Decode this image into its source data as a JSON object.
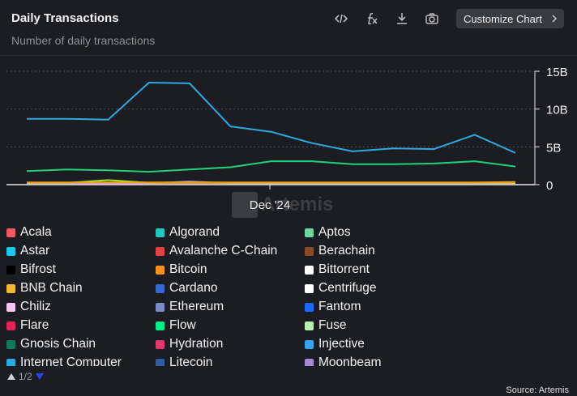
{
  "header": {
    "title": "Daily Transactions",
    "subtitle": "Number of daily transactions",
    "customize_label": "Customize Chart"
  },
  "toolbar": {
    "icons": [
      "code-icon",
      "formula-icon",
      "download-icon",
      "camera-icon"
    ]
  },
  "watermark": "Artemis",
  "chart_data": {
    "type": "line",
    "x_tick_labels": [
      "Dec '24"
    ],
    "y_ticks": [
      "0",
      "5B",
      "10B",
      "15B"
    ],
    "ylim": [
      0,
      15
    ],
    "y_unit": "B",
    "grid": true,
    "series": [
      {
        "color": "#2ea8e0",
        "values": [
          8.7,
          8.7,
          8.6,
          13.5,
          13.4,
          7.7,
          7.0,
          5.5,
          4.4,
          4.8,
          4.7,
          6.6,
          4.2
        ]
      },
      {
        "color": "#22d27a",
        "values": [
          1.8,
          2.0,
          1.9,
          1.7,
          2.0,
          2.3,
          3.1,
          3.1,
          2.7,
          2.7,
          2.8,
          3.1,
          2.4
        ]
      },
      {
        "color": "#f59e0b",
        "values": [
          0.3,
          0.3,
          0.3,
          0.3,
          0.3,
          0.3,
          0.3,
          0.3,
          0.3,
          0.3,
          0.3,
          0.3,
          0.35
        ]
      },
      {
        "color": "#a3e635",
        "values": [
          0.25,
          0.25,
          0.6,
          0.25,
          0.25,
          0.25,
          0.25,
          0.25,
          0.25,
          0.25,
          0.25,
          0.25,
          0.25
        ]
      },
      {
        "color": "#c4a1ff",
        "values": [
          0.2,
          0.2,
          0.2,
          0.2,
          0.4,
          0.2,
          0.2,
          0.2,
          0.2,
          0.2,
          0.2,
          0.2,
          0.2
        ]
      },
      {
        "color": "#e11d48",
        "values": [
          0.15,
          0.15,
          0.15,
          0.15,
          0.15,
          0.15,
          0.15,
          0.15,
          0.15,
          0.15,
          0.15,
          0.15,
          0.15
        ]
      },
      {
        "color": "#f97316",
        "values": [
          0.1,
          0.1,
          0.1,
          0.1,
          0.1,
          0.1,
          0.1,
          0.1,
          0.1,
          0.1,
          0.1,
          0.1,
          0.1
        ]
      }
    ],
    "legend": [
      {
        "name": "Acala",
        "color": "#f05a5a"
      },
      {
        "name": "Algorand",
        "color": "#1ec7c0"
      },
      {
        "name": "Aptos",
        "color": "#6cd4a0"
      },
      {
        "name": "Astar",
        "color": "#18c9f0"
      },
      {
        "name": "Avalanche C-Chain",
        "color": "#e84142"
      },
      {
        "name": "Berachain",
        "color": "#8b4a2b"
      },
      {
        "name": "Bifrost",
        "color": "#000000"
      },
      {
        "name": "Bitcoin",
        "color": "#f7931a"
      },
      {
        "name": "Bittorrent",
        "color": "#ffffff"
      },
      {
        "name": "BNB Chain",
        "color": "#f3ba2f"
      },
      {
        "name": "Cardano",
        "color": "#3468d1"
      },
      {
        "name": "Centrifuge",
        "color": "#ffffff"
      },
      {
        "name": "Chiliz",
        "color": "#f5c6f0"
      },
      {
        "name": "Ethereum",
        "color": "#7b8ac9"
      },
      {
        "name": "Fantom",
        "color": "#1969ff"
      },
      {
        "name": "Flare",
        "color": "#e62058"
      },
      {
        "name": "Flow",
        "color": "#00ef8b"
      },
      {
        "name": "Fuse",
        "color": "#b4f0b4"
      },
      {
        "name": "Gnosis Chain",
        "color": "#0e7a5a"
      },
      {
        "name": "Hydration",
        "color": "#e8356d"
      },
      {
        "name": "Injective",
        "color": "#34a3f0"
      },
      {
        "name": "Internet Computer",
        "color": "#29abe2"
      },
      {
        "name": "Litecoin",
        "color": "#345d9d"
      },
      {
        "name": "Moonbeam",
        "color": "#a08ad8"
      }
    ],
    "page": "1/2",
    "source": "Source: Artemis"
  }
}
